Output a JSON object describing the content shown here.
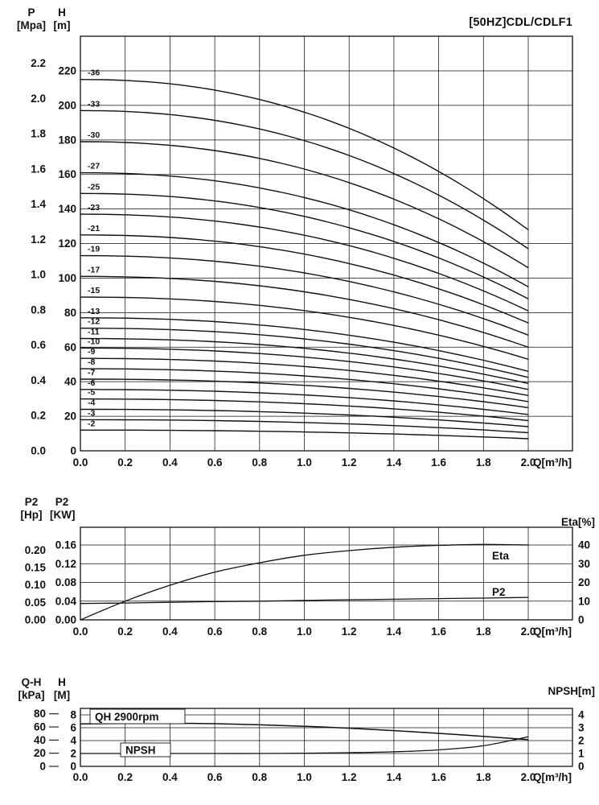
{
  "page": {
    "bg": "#ffffff",
    "ink": "#111111"
  },
  "chart_data": [
    {
      "id": "hq",
      "type": "line",
      "title": "[50HZ]CDL/CDLF1",
      "xlabel": "Q[m³/h]",
      "x_range": [
        0.0,
        2.0
      ],
      "x_ticks": [
        "0.0",
        "0.2",
        "0.4",
        "0.6",
        "0.8",
        "1.0",
        "1.2",
        "1.4",
        "1.6",
        "1.8",
        "2.0"
      ],
      "grid": true,
      "legend_position": "curve-labels-left",
      "left_axes": [
        {
          "name": "P",
          "unit": "[Mpa]",
          "ticks": [
            "0.0",
            "0.2",
            "0.4",
            "0.6",
            "0.8",
            "1.0",
            "1.2",
            "1.4",
            "1.6",
            "1.8",
            "2.0",
            "2.2"
          ],
          "m_per_unit": 101.97
        },
        {
          "name": "H",
          "unit": "[m]",
          "ticks": [
            0,
            20,
            40,
            60,
            80,
            100,
            120,
            140,
            160,
            180,
            200,
            220
          ],
          "range": [
            0,
            220
          ]
        }
      ],
      "curve_model": "H(Q) = H0 - (H0 - H2) * (Q/2)^2.2 ; H in m, Q in m3/h; one curve per stage count",
      "series": [
        {
          "label": "-36",
          "H0": 215,
          "H2": 128
        },
        {
          "label": "-33",
          "H0": 197,
          "H2": 117
        },
        {
          "label": "-30",
          "H0": 179,
          "H2": 106
        },
        {
          "label": "-27",
          "H0": 161,
          "H2": 95
        },
        {
          "label": "-25",
          "H0": 149,
          "H2": 88
        },
        {
          "label": "-23",
          "H0": 137,
          "H2": 81
        },
        {
          "label": "-21",
          "H0": 125,
          "H2": 74
        },
        {
          "label": "-19",
          "H0": 113,
          "H2": 67
        },
        {
          "label": "-17",
          "H0": 101,
          "H2": 60
        },
        {
          "label": "-15",
          "H0": 89,
          "H2": 53
        },
        {
          "label": "-13",
          "H0": 77,
          "H2": 46
        },
        {
          "label": "-12",
          "H0": 71,
          "H2": 42.5
        },
        {
          "label": "-11",
          "H0": 65,
          "H2": 39
        },
        {
          "label": "-10",
          "H0": 59.5,
          "H2": 35.5
        },
        {
          "label": "-9",
          "H0": 53.5,
          "H2": 32
        },
        {
          "label": "-8",
          "H0": 47.5,
          "H2": 28.5
        },
        {
          "label": "-7",
          "H0": 41.5,
          "H2": 25
        },
        {
          "label": "-6",
          "H0": 35.5,
          "H2": 21
        },
        {
          "label": "-5",
          "H0": 30,
          "H2": 17.5
        },
        {
          "label": "-4",
          "H0": 24,
          "H2": 14
        },
        {
          "label": "-3",
          "H0": 18,
          "H2": 10.5
        },
        {
          "label": "-2",
          "H0": 12,
          "H2": 7
        }
      ]
    },
    {
      "id": "power-eta",
      "type": "line",
      "xlabel": "Q[m³/h]",
      "x_ticks": [
        "0.0",
        "0.2",
        "0.4",
        "0.6",
        "0.8",
        "1.0",
        "1.2",
        "1.4",
        "1.6",
        "1.8",
        "2.0"
      ],
      "grid": true,
      "left_axes": [
        {
          "name": "P2",
          "unit": "[Hp]",
          "ticks": [
            "0.00",
            "0.05",
            "0.10",
            "0.15",
            "0.20"
          ],
          "kw_per_hp": 0.7457
        },
        {
          "name": "P2",
          "unit": "[KW]",
          "ticks": [
            "0.00",
            "0.04",
            "0.08",
            "0.12",
            "0.16"
          ],
          "range": [
            0,
            0.16
          ]
        }
      ],
      "right_axis": {
        "label": "Eta[%]",
        "ticks": [
          0,
          10,
          20,
          30,
          40
        ],
        "range": [
          0,
          40
        ]
      },
      "x": [
        0,
        0.2,
        0.4,
        0.6,
        0.8,
        1.0,
        1.2,
        1.4,
        1.6,
        1.8,
        2.0
      ],
      "series": [
        {
          "name": "Eta",
          "axis": "eta",
          "values": [
            0,
            10,
            18.5,
            25.5,
            30.5,
            34.5,
            37,
            38.8,
            39.8,
            40.3,
            40
          ]
        },
        {
          "name": "P2",
          "axis": "kw",
          "values": [
            0.035,
            0.036,
            0.0375,
            0.039,
            0.04,
            0.0415,
            0.043,
            0.044,
            0.0455,
            0.0465,
            0.048
          ]
        }
      ]
    },
    {
      "id": "qh-npsh",
      "type": "line",
      "xlabel": "Q[m³/h]",
      "x_ticks": [
        "0.0",
        "0.2",
        "0.4",
        "0.6",
        "0.8",
        "1.0",
        "1.2",
        "1.4",
        "1.6",
        "1.8",
        "2.0"
      ],
      "grid": true,
      "left_axes": [
        {
          "name": "Q-H",
          "unit": "[kPa]",
          "ticks": [
            0,
            20,
            40,
            60,
            80
          ],
          "kpa_per_m": 9.80665
        },
        {
          "name": "H",
          "unit": "[M]",
          "ticks": [
            0,
            2,
            4,
            6,
            8
          ],
          "range": [
            0,
            8
          ]
        }
      ],
      "right_axis": {
        "label": "NPSH[m]",
        "ticks": [
          0,
          1,
          2,
          3,
          4
        ],
        "range": [
          0,
          4
        ]
      },
      "x": [
        0,
        0.2,
        0.4,
        0.6,
        0.8,
        1.0,
        1.2,
        1.4,
        1.6,
        1.8,
        2.0
      ],
      "series": [
        {
          "name": "QH 2900rpm",
          "axis": "h",
          "values": [
            6.6,
            6.65,
            6.68,
            6.62,
            6.45,
            6.22,
            5.92,
            5.55,
            5.12,
            4.65,
            4.15
          ]
        },
        {
          "name": "NPSH",
          "axis": "npsh",
          "values": [
            1,
            1,
            1,
            1,
            1,
            1.02,
            1.06,
            1.13,
            1.28,
            1.6,
            2.3
          ]
        }
      ],
      "annotations": [
        {
          "text": "QH 2900rpm",
          "boxed": true
        },
        {
          "text": "NPSH",
          "boxed": true
        }
      ]
    }
  ]
}
